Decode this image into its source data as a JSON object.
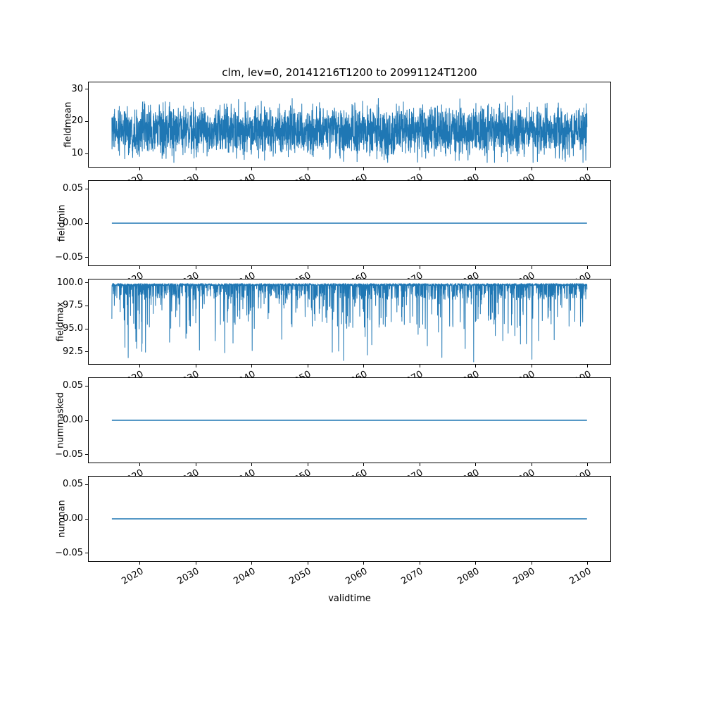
{
  "figure": {
    "title": "clm, lev=0, 20141216T1200 to 20991124T1200",
    "xlabel": "validtime",
    "background": "#ffffff",
    "line_color": "#1f77b4",
    "text_color": "#000000",
    "x_ticks": [
      2020,
      2030,
      2040,
      2050,
      2060,
      2070,
      2080,
      2090,
      2100
    ],
    "x_tick_labels": [
      "2020",
      "2030",
      "2040",
      "2050",
      "2060",
      "2070",
      "2080",
      "2090",
      "2100"
    ],
    "xlim": [
      2010.7,
      2104.2
    ],
    "x_data_range": [
      2014.96,
      2099.9
    ]
  },
  "chart_data": [
    {
      "type": "line",
      "ylabel": "fieldmean",
      "ylim": [
        5.7,
        32.3
      ],
      "yticks": [
        10,
        20,
        30
      ],
      "ytick_labels": [
        "10",
        "20",
        "30"
      ],
      "x_range": [
        2014.96,
        2099.9
      ],
      "summary": "Dense noisy daily series oscillating between ~7 and ~31, centered near 17",
      "synth": {
        "kind": "noise",
        "seed": 1234,
        "points": 3200,
        "mean": 17,
        "spread": 6.5,
        "clip_min": 7.1,
        "clip_max": 31.2
      },
      "line_width": 1
    },
    {
      "type": "line",
      "ylabel": "fieldmin",
      "ylim": [
        -0.0625,
        0.0625
      ],
      "yticks": [
        0.05,
        0.0,
        -0.05
      ],
      "ytick_labels": [
        "0.05",
        "0.00",
        "−0.05"
      ],
      "x_range": [
        2014.96,
        2099.9
      ],
      "summary": "Constant 0.00 across the entire period",
      "synth": {
        "kind": "constant",
        "value": 0.0,
        "points": 2
      },
      "line_width": 1.5
    },
    {
      "type": "line",
      "ylabel": "fieldmax",
      "ylim": [
        91.1,
        100.45
      ],
      "yticks": [
        100.0,
        97.5,
        95.0,
        92.5
      ],
      "ytick_labels": [
        "100.0",
        "97.5",
        "95.0",
        "92.5"
      ],
      "x_range": [
        2014.96,
        2099.9
      ],
      "summary": "Mostly ~100 with frequent downward spikes to 97-99 and occasional deep spikes to ~91.3",
      "synth": {
        "kind": "spikes_down",
        "seed": 999,
        "points": 3200,
        "base": 100,
        "clip_min": 91.25
      },
      "line_width": 1
    },
    {
      "type": "line",
      "ylabel": "nummasked",
      "ylim": [
        -0.0625,
        0.0625
      ],
      "yticks": [
        0.05,
        0.0,
        -0.05
      ],
      "ytick_labels": [
        "0.05",
        "0.00",
        "−0.05"
      ],
      "x_range": [
        2014.96,
        2099.9
      ],
      "summary": "Constant 0.00 across the entire period",
      "synth": {
        "kind": "constant",
        "value": 0.0,
        "points": 2
      },
      "line_width": 1.5
    },
    {
      "type": "line",
      "ylabel": "numnan",
      "ylim": [
        -0.0625,
        0.0625
      ],
      "yticks": [
        0.05,
        0.0,
        -0.05
      ],
      "ytick_labels": [
        "0.05",
        "0.00",
        "−0.05"
      ],
      "x_range": [
        2014.96,
        2099.9
      ],
      "summary": "Constant 0.00 across the entire period",
      "synth": {
        "kind": "constant",
        "value": 0.0,
        "points": 2
      },
      "line_width": 1.5
    }
  ]
}
